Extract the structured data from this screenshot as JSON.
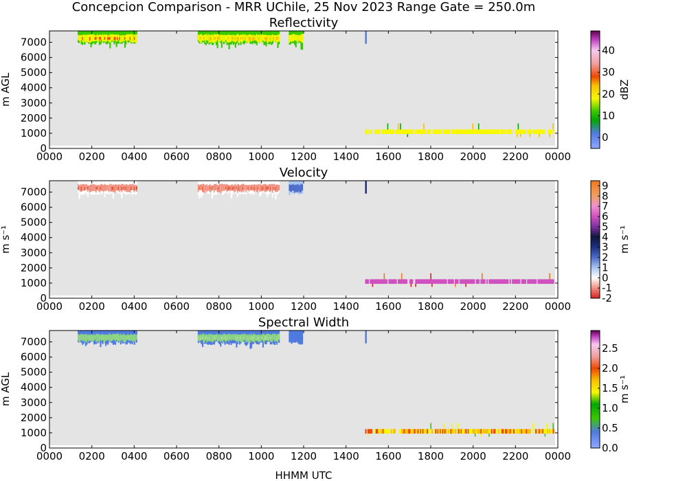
{
  "figure": {
    "suptitle": "Concepcion Comparison - MRR UChile, 25 Nov 2023 Range Gate = 250.0m",
    "xlabel": "HHMM UTC"
  },
  "chart_data": [
    {
      "type": "heatmap",
      "title": "Reflectivity",
      "ylabel": "m AGL",
      "xlim": [
        0,
        24
      ],
      "ylim": [
        0,
        7750
      ],
      "x_ticks": [
        0,
        2,
        4,
        6,
        8,
        10,
        12,
        14,
        16,
        18,
        20,
        22,
        24
      ],
      "x_tick_labels": [
        "0000",
        "0200",
        "0400",
        "0600",
        "0800",
        "1000",
        "1200",
        "1400",
        "1600",
        "1800",
        "2000",
        "2200",
        "0000"
      ],
      "y_ticks": [
        0,
        1000,
        2000,
        3000,
        4000,
        5000,
        6000,
        7000
      ],
      "y_tick_labels": [
        "0",
        "1000",
        "2000",
        "3000",
        "4000",
        "5000",
        "6000",
        "7000"
      ],
      "colorbar": {
        "label": "dBZ",
        "range": [
          -5,
          49
        ],
        "ticks": [
          0,
          10,
          20,
          30,
          40
        ],
        "tick_labels": [
          "0",
          "10",
          "20",
          "30",
          "40"
        ],
        "stops": [
          {
            "v": -5,
            "c": "#8fa8ff"
          },
          {
            "v": 2,
            "c": "#4f7be0"
          },
          {
            "v": 8,
            "c": "#00a800"
          },
          {
            "v": 12,
            "c": "#38c800"
          },
          {
            "v": 18,
            "c": "#f8f800"
          },
          {
            "v": 24,
            "c": "#f8c000"
          },
          {
            "v": 28,
            "c": "#f04800"
          },
          {
            "v": 34,
            "c": "#f0a0a0"
          },
          {
            "v": 40,
            "c": "#f8c8f0"
          },
          {
            "v": 45,
            "c": "#c040c0"
          },
          {
            "v": 49,
            "c": "#600050"
          }
        ]
      },
      "background_color": "#e4e4e4",
      "segments": [
        {
          "t0": 1.33,
          "t1": 4.12,
          "edge": "#38c800",
          "core": "#f8f800",
          "hot": "#f04800"
        },
        {
          "t0": 7.0,
          "t1": 10.85,
          "edge": "#38c800",
          "core": "#f8f800",
          "hot": "#f8c000"
        },
        {
          "t0": 11.3,
          "t1": 11.95,
          "edge": "#38c800",
          "core": "#f8f800",
          "hot": "#f8f800"
        }
      ],
      "low_band": {
        "t0": 14.9,
        "t1": 23.8,
        "colors": [
          "#f8f800"
        ],
        "spikes": [
          "#00a800",
          "#f8c000"
        ]
      },
      "blips": [
        {
          "t": 14.9,
          "color": "#4f7be0"
        }
      ]
    },
    {
      "type": "heatmap",
      "title": "Velocity",
      "ylabel": "m s⁻¹",
      "xlim": [
        0,
        24
      ],
      "ylim": [
        0,
        7750
      ],
      "x_ticks": [
        0,
        2,
        4,
        6,
        8,
        10,
        12,
        14,
        16,
        18,
        20,
        22,
        24
      ],
      "x_tick_labels": [
        "0000",
        "0200",
        "0400",
        "0600",
        "0800",
        "1000",
        "1200",
        "1400",
        "1600",
        "1800",
        "2000",
        "2200",
        "0000"
      ],
      "y_ticks": [
        0,
        1000,
        2000,
        3000,
        4000,
        5000,
        6000,
        7000
      ],
      "y_tick_labels": [
        "0",
        "1000",
        "2000",
        "3000",
        "4000",
        "5000",
        "6000",
        "7000"
      ],
      "colorbar": {
        "label": "m s⁻¹",
        "range": [
          -2,
          9.5
        ],
        "ticks": [
          -2,
          -1,
          0,
          1,
          2,
          3,
          4,
          5,
          6,
          7,
          8,
          9
        ],
        "tick_labels": [
          "-2",
          "-1",
          "0",
          "1",
          "2",
          "3",
          "4",
          "5",
          "6",
          "7",
          "8",
          "9"
        ],
        "stops": [
          {
            "v": -2,
            "c": "#d82020"
          },
          {
            "v": -1,
            "c": "#f09080"
          },
          {
            "v": 0,
            "c": "#ffffff"
          },
          {
            "v": 1,
            "c": "#a8c4f0"
          },
          {
            "v": 2,
            "c": "#4a6cc8"
          },
          {
            "v": 3,
            "c": "#1c3080"
          },
          {
            "v": 4,
            "c": "#101840"
          },
          {
            "v": 5,
            "c": "#8030a0"
          },
          {
            "v": 6,
            "c": "#d050c0"
          },
          {
            "v": 7,
            "c": "#f090d0"
          },
          {
            "v": 8,
            "c": "#f0a060"
          },
          {
            "v": 9.5,
            "c": "#f07820"
          }
        ]
      },
      "background_color": "#e4e4e4",
      "segments": [
        {
          "t0": 1.33,
          "t1": 4.12,
          "edge": "#ffffff",
          "core": "#f09080",
          "hot": "#e05030"
        },
        {
          "t0": 7.0,
          "t1": 10.85,
          "edge": "#ffffff",
          "core": "#f09080",
          "hot": "#e86040"
        },
        {
          "t0": 11.3,
          "t1": 11.95,
          "edge": "#a8c4f0",
          "core": "#4a6cc8",
          "hot": "#4a6cc8"
        }
      ],
      "low_band": {
        "t0": 14.9,
        "t1": 23.8,
        "colors": [
          "#d050c0"
        ],
        "spikes": [
          "#f07820",
          "#d82020"
        ]
      },
      "blips": [
        {
          "t": 14.9,
          "color": "#1c3080"
        }
      ]
    },
    {
      "type": "heatmap",
      "title": "Spectral Width",
      "ylabel": "m AGL",
      "xlim": [
        0,
        24
      ],
      "ylim": [
        0,
        7750
      ],
      "x_ticks": [
        0,
        2,
        4,
        6,
        8,
        10,
        12,
        14,
        16,
        18,
        20,
        22,
        24
      ],
      "x_tick_labels": [
        "0000",
        "0200",
        "0400",
        "0600",
        "0800",
        "1000",
        "1200",
        "1400",
        "1600",
        "1800",
        "2000",
        "2200",
        "0000"
      ],
      "y_ticks": [
        0,
        1000,
        2000,
        3000,
        4000,
        5000,
        6000,
        7000
      ],
      "y_tick_labels": [
        "0",
        "1000",
        "2000",
        "3000",
        "4000",
        "5000",
        "6000",
        "7000"
      ],
      "colorbar": {
        "label": "m s⁻¹",
        "range": [
          0,
          2.95
        ],
        "ticks": [
          0,
          0.5,
          1.0,
          1.5,
          2.0,
          2.5
        ],
        "tick_labels": [
          "0.0",
          "0.5",
          "1.0",
          "1.5",
          "2.0",
          "2.5"
        ],
        "stops": [
          {
            "v": 0,
            "c": "#8fa8ff"
          },
          {
            "v": 0.4,
            "c": "#4f7be0"
          },
          {
            "v": 0.75,
            "c": "#38c800"
          },
          {
            "v": 1.1,
            "c": "#00a800"
          },
          {
            "v": 1.4,
            "c": "#f8f800"
          },
          {
            "v": 1.7,
            "c": "#f8c000"
          },
          {
            "v": 2.0,
            "c": "#f04800"
          },
          {
            "v": 2.3,
            "c": "#f0a0a0"
          },
          {
            "v": 2.6,
            "c": "#f8c8f0"
          },
          {
            "v": 2.8,
            "c": "#c040c0"
          },
          {
            "v": 2.95,
            "c": "#600050"
          }
        ]
      },
      "background_color": "#e4e4e4",
      "segments": [
        {
          "t0": 1.33,
          "t1": 4.12,
          "edge": "#4f7be0",
          "core": "#8fd880",
          "hot": "#8fd880"
        },
        {
          "t0": 7.0,
          "t1": 10.85,
          "edge": "#4f7be0",
          "core": "#8fd880",
          "hot": "#a8e090"
        },
        {
          "t0": 11.3,
          "t1": 11.95,
          "edge": "#4f7be0",
          "core": "#4f7be0",
          "hot": "#4f7be0"
        }
      ],
      "low_band": {
        "t0": 14.9,
        "t1": 23.8,
        "colors": [
          "#f8c000",
          "#f04800",
          "#f8f800"
        ],
        "spikes": [
          "#38c800",
          "#f8f800"
        ]
      },
      "blips": [
        {
          "t": 14.9,
          "color": "#4f7be0"
        }
      ]
    }
  ]
}
